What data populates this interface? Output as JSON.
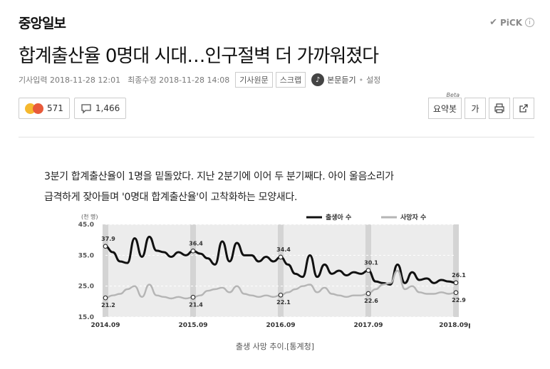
{
  "header": {
    "logo": "중앙일보",
    "pick_label": "PiCK"
  },
  "article": {
    "title": "합계출산율 0명대 시대…인구절벽 더 가까워졌다",
    "meta": {
      "input_label": "기사입력 2018-11-28 12:01",
      "updated_label": "최종수정 2018-11-28 14:08",
      "original_button": "기사원문",
      "scrap_button": "스크랩",
      "listen_label": "본문듣기",
      "settings_label": "설정"
    },
    "reactions": {
      "count": "571"
    },
    "comments": {
      "count": "1,466"
    },
    "tools": {
      "summary": "요약봇",
      "summary_badge": "Beta",
      "font": "가"
    },
    "body": [
      "3분기 합계출산율이 1명을 밑돌았다. 지난 2분기에 이어 두 분기째다. 아이 울음소리가",
      "급격하게 잦아들며 '0명대 합계출산율'이 고착화하는 모양새다."
    ],
    "caption": "출생 사망 추이.[통계청]"
  },
  "colors": {
    "births": "#111111",
    "deaths": "#b5b5b5",
    "highlight_band": "#d4d4d4",
    "plot_bg": "#ececec"
  },
  "chart_data": {
    "type": "line",
    "unit_label": "(천 명)",
    "ylim": [
      15.0,
      45.0
    ],
    "yticks": [
      "45.0",
      "35.0",
      "25.0",
      "15.0"
    ],
    "xticks": [
      "2014.09",
      "2015.09",
      "2016.09",
      "2017.09",
      "2018.09p"
    ],
    "x": [
      "2014.09",
      "2014.10",
      "2014.11",
      "2014.12",
      "2015.01",
      "2015.02",
      "2015.03",
      "2015.04",
      "2015.05",
      "2015.06",
      "2015.07",
      "2015.08",
      "2015.09",
      "2015.10",
      "2015.11",
      "2015.12",
      "2016.01",
      "2016.02",
      "2016.03",
      "2016.04",
      "2016.05",
      "2016.06",
      "2016.07",
      "2016.08",
      "2016.09",
      "2016.10",
      "2016.11",
      "2016.12",
      "2017.01",
      "2017.02",
      "2017.03",
      "2017.04",
      "2017.05",
      "2017.06",
      "2017.07",
      "2017.08",
      "2017.09",
      "2017.10",
      "2017.11",
      "2017.12",
      "2018.01",
      "2018.02",
      "2018.03",
      "2018.04",
      "2018.05",
      "2018.06",
      "2018.07",
      "2018.08",
      "2018.09"
    ],
    "series": [
      {
        "name": "출생아 수",
        "values": [
          37.9,
          36.0,
          33.0,
          32.5,
          40.5,
          34.5,
          41.0,
          36.5,
          36.0,
          34.5,
          36.0,
          35.0,
          36.4,
          35.5,
          34.0,
          32.0,
          39.5,
          33.0,
          39.0,
          35.0,
          35.0,
          33.0,
          34.5,
          33.0,
          34.4,
          32.0,
          29.0,
          28.0,
          35.0,
          28.0,
          32.0,
          29.0,
          30.0,
          28.5,
          29.5,
          29.0,
          30.1,
          26.5,
          26.0,
          25.5,
          32.0,
          26.0,
          29.5,
          27.0,
          27.5,
          26.0,
          27.0,
          26.5,
          26.1
        ]
      },
      {
        "name": "사망자 수",
        "values": [
          21.2,
          22.0,
          22.5,
          24.0,
          25.0,
          21.5,
          25.5,
          22.0,
          21.5,
          21.0,
          21.5,
          21.0,
          21.4,
          22.0,
          23.5,
          24.0,
          24.5,
          23.0,
          25.0,
          22.5,
          22.0,
          21.5,
          22.0,
          21.5,
          22.1,
          23.0,
          24.0,
          25.0,
          25.5,
          23.0,
          24.5,
          22.5,
          22.0,
          21.5,
          22.0,
          22.0,
          22.6,
          24.0,
          25.5,
          26.0,
          30.0,
          24.0,
          25.0,
          23.0,
          22.5,
          22.5,
          23.0,
          22.5,
          22.9
        ]
      }
    ],
    "annotations": [
      {
        "x": "2014.09",
        "series": 0,
        "label": "37.9"
      },
      {
        "x": "2015.09",
        "series": 0,
        "label": "36.4"
      },
      {
        "x": "2016.09",
        "series": 0,
        "label": "34.4"
      },
      {
        "x": "2017.09",
        "series": 0,
        "label": "30.1"
      },
      {
        "x": "2018.09",
        "series": 0,
        "label": "26.1"
      },
      {
        "x": "2014.09",
        "series": 1,
        "label": "21.2"
      },
      {
        "x": "2015.09",
        "series": 1,
        "label": "21.4"
      },
      {
        "x": "2016.09",
        "series": 1,
        "label": "22.1"
      },
      {
        "x": "2017.09",
        "series": 1,
        "label": "22.6"
      },
      {
        "x": "2018.09",
        "series": 1,
        "label": "22.9"
      }
    ],
    "highlight_periods": [
      "2014.09",
      "2015.09",
      "2016.09",
      "2017.09",
      "2018.09"
    ],
    "legend_position": "top-right",
    "grid": true
  }
}
